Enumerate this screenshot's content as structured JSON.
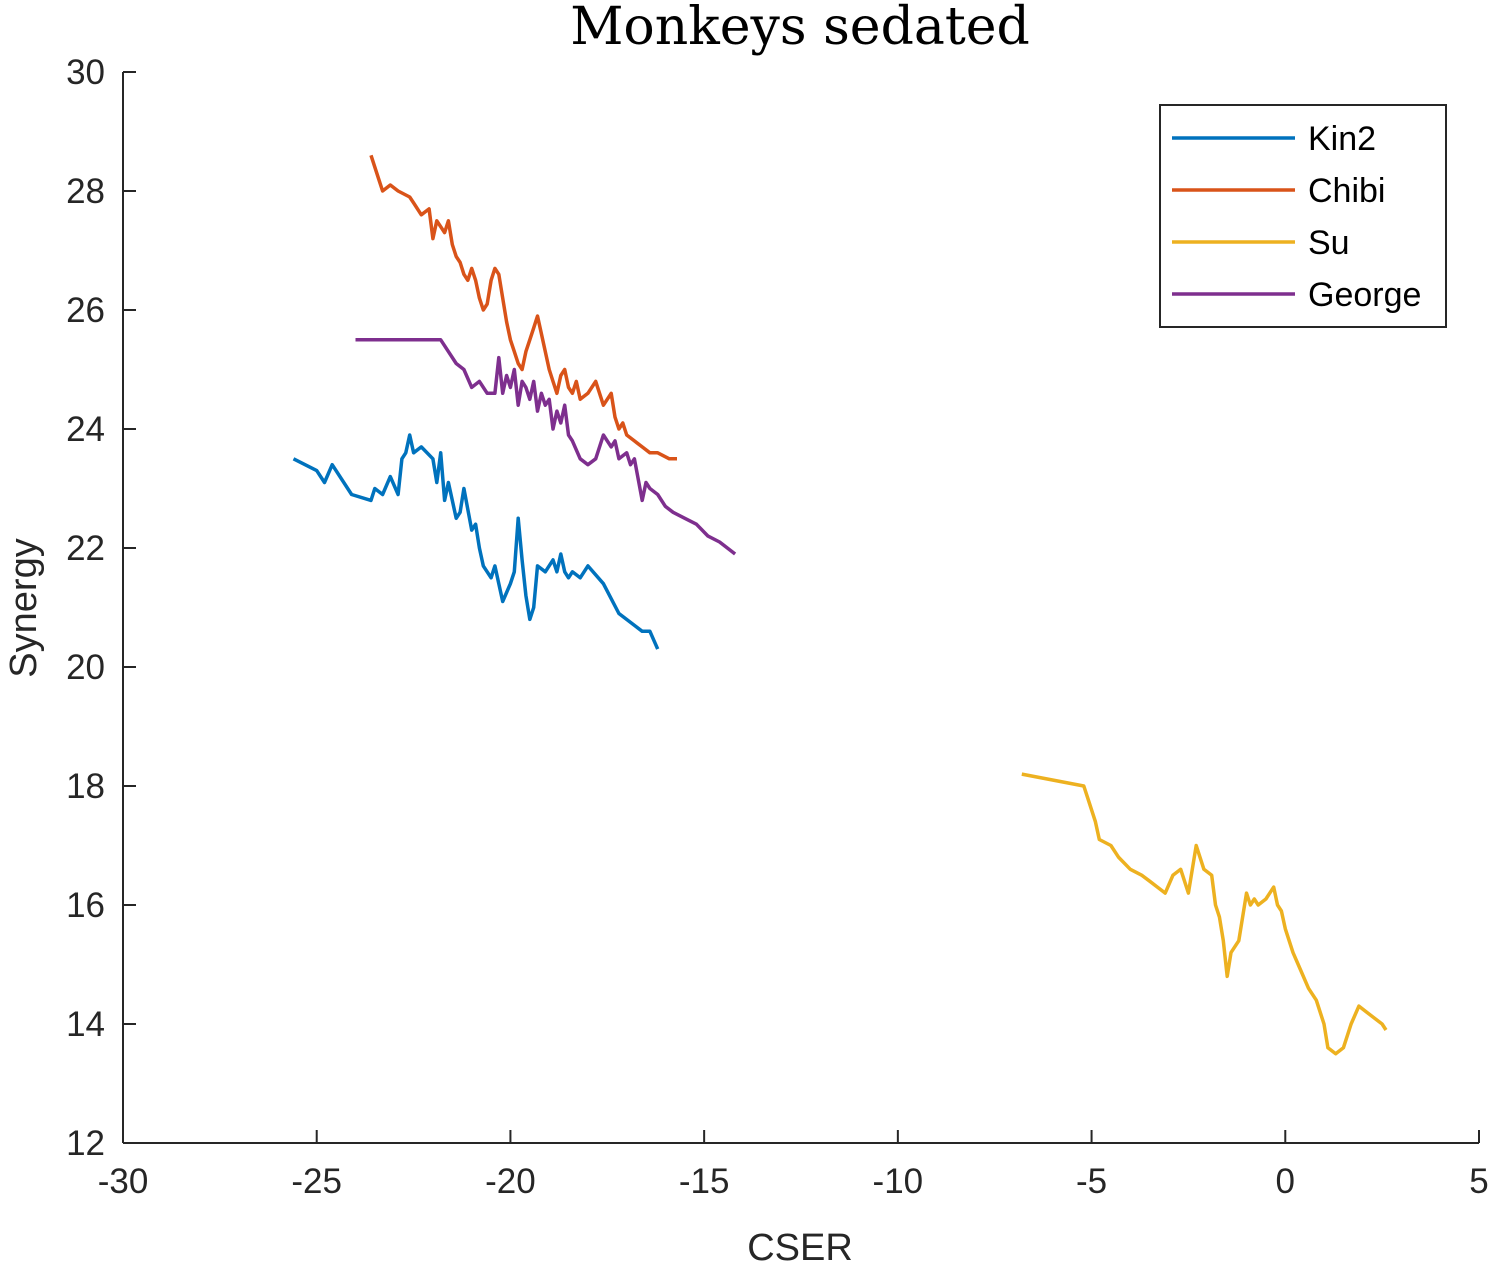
{
  "chart_data": {
    "type": "line",
    "title": "Monkeys sedated",
    "xlabel": "CSER",
    "ylabel": "Synergy",
    "xlim": [
      -30,
      5
    ],
    "ylim": [
      12,
      30
    ],
    "xticks": [
      -30,
      -25,
      -20,
      -15,
      -10,
      -5,
      0,
      5
    ],
    "yticks": [
      12,
      14,
      16,
      18,
      20,
      22,
      24,
      26,
      28,
      30
    ],
    "legend_position": "top-right",
    "grid": false,
    "series": [
      {
        "name": "Kin2",
        "color": "#0072BD",
        "x": [
          -25.6,
          -25.0,
          -24.8,
          -24.6,
          -24.1,
          -23.6,
          -23.5,
          -23.3,
          -23.1,
          -22.9,
          -22.8,
          -22.7,
          -22.6,
          -22.5,
          -22.3,
          -22.0,
          -21.9,
          -21.8,
          -21.7,
          -21.6,
          -21.4,
          -21.3,
          -21.2,
          -21.0,
          -20.9,
          -20.8,
          -20.7,
          -20.5,
          -20.4,
          -20.2,
          -20.0,
          -19.9,
          -19.8,
          -19.7,
          -19.6,
          -19.5,
          -19.4,
          -19.3,
          -19.1,
          -18.9,
          -18.8,
          -18.7,
          -18.6,
          -18.5,
          -18.4,
          -18.2,
          -18.0,
          -17.6,
          -17.2,
          -16.6,
          -16.4,
          -16.2
        ],
        "y": [
          23.5,
          23.3,
          23.1,
          23.4,
          22.9,
          22.8,
          23.0,
          22.9,
          23.2,
          22.9,
          23.5,
          23.6,
          23.9,
          23.6,
          23.7,
          23.5,
          23.1,
          23.6,
          22.8,
          23.1,
          22.5,
          22.6,
          23.0,
          22.3,
          22.4,
          22.0,
          21.7,
          21.5,
          21.7,
          21.1,
          21.4,
          21.6,
          22.5,
          21.8,
          21.2,
          20.8,
          21.0,
          21.7,
          21.6,
          21.8,
          21.6,
          21.9,
          21.6,
          21.5,
          21.6,
          21.5,
          21.7,
          21.4,
          20.9,
          20.6,
          20.6,
          20.3
        ]
      },
      {
        "name": "Chibi",
        "color": "#D95319",
        "x": [
          -23.6,
          -23.4,
          -23.3,
          -23.1,
          -22.9,
          -22.6,
          -22.5,
          -22.3,
          -22.1,
          -22.0,
          -21.9,
          -21.8,
          -21.7,
          -21.6,
          -21.5,
          -21.4,
          -21.3,
          -21.2,
          -21.1,
          -21.0,
          -20.9,
          -20.8,
          -20.7,
          -20.6,
          -20.5,
          -20.4,
          -20.3,
          -20.2,
          -20.1,
          -20.0,
          -19.9,
          -19.8,
          -19.7,
          -19.6,
          -19.5,
          -19.4,
          -19.3,
          -19.2,
          -19.1,
          -19.0,
          -18.9,
          -18.8,
          -18.7,
          -18.6,
          -18.5,
          -18.4,
          -18.3,
          -18.2,
          -18.0,
          -17.8,
          -17.6,
          -17.4,
          -17.3,
          -17.2,
          -17.1,
          -17.0,
          -16.8,
          -16.6,
          -16.4,
          -16.2,
          -15.9,
          -15.7
        ],
        "y": [
          28.6,
          28.2,
          28.0,
          28.1,
          28.0,
          27.9,
          27.8,
          27.6,
          27.7,
          27.2,
          27.5,
          27.4,
          27.3,
          27.5,
          27.1,
          26.9,
          26.8,
          26.6,
          26.5,
          26.7,
          26.5,
          26.2,
          26.0,
          26.1,
          26.5,
          26.7,
          26.6,
          26.2,
          25.8,
          25.5,
          25.3,
          25.1,
          25.0,
          25.3,
          25.5,
          25.7,
          25.9,
          25.6,
          25.3,
          25.0,
          24.8,
          24.6,
          24.9,
          25.0,
          24.7,
          24.6,
          24.8,
          24.5,
          24.6,
          24.8,
          24.4,
          24.6,
          24.2,
          24.0,
          24.1,
          23.9,
          23.8,
          23.7,
          23.6,
          23.6,
          23.5,
          23.5
        ]
      },
      {
        "name": "Su",
        "color": "#EDB120",
        "x": [
          -6.8,
          -5.2,
          -5.1,
          -4.9,
          -4.8,
          -4.5,
          -4.3,
          -4.0,
          -3.7,
          -3.5,
          -3.3,
          -3.1,
          -2.9,
          -2.7,
          -2.5,
          -2.3,
          -2.1,
          -1.9,
          -1.8,
          -1.7,
          -1.6,
          -1.5,
          -1.4,
          -1.2,
          -1.0,
          -0.9,
          -0.8,
          -0.7,
          -0.5,
          -0.3,
          -0.2,
          -0.1,
          0.0,
          0.2,
          0.4,
          0.6,
          0.8,
          1.0,
          1.1,
          1.3,
          1.5,
          1.7,
          1.9,
          2.1,
          2.3,
          2.5,
          2.6
        ],
        "y": [
          18.2,
          18.0,
          17.8,
          17.4,
          17.1,
          17.0,
          16.8,
          16.6,
          16.5,
          16.4,
          16.3,
          16.2,
          16.5,
          16.6,
          16.2,
          17.0,
          16.6,
          16.5,
          16.0,
          15.8,
          15.4,
          14.8,
          15.2,
          15.4,
          16.2,
          16.0,
          16.1,
          16.0,
          16.1,
          16.3,
          16.0,
          15.9,
          15.6,
          15.2,
          14.9,
          14.6,
          14.4,
          14.0,
          13.6,
          13.5,
          13.6,
          14.0,
          14.3,
          14.2,
          14.1,
          14.0,
          13.9
        ]
      },
      {
        "name": "George",
        "color": "#7E2F8E",
        "x": [
          -24.0,
          -21.8,
          -21.6,
          -21.4,
          -21.2,
          -21.0,
          -20.8,
          -20.6,
          -20.4,
          -20.3,
          -20.2,
          -20.1,
          -20.0,
          -19.9,
          -19.8,
          -19.7,
          -19.6,
          -19.5,
          -19.4,
          -19.3,
          -19.2,
          -19.1,
          -19.0,
          -18.9,
          -18.8,
          -18.7,
          -18.6,
          -18.5,
          -18.4,
          -18.2,
          -18.0,
          -17.8,
          -17.6,
          -17.4,
          -17.3,
          -17.2,
          -17.0,
          -16.9,
          -16.8,
          -16.6,
          -16.5,
          -16.4,
          -16.2,
          -16.0,
          -15.8,
          -15.5,
          -15.2,
          -14.9,
          -14.6,
          -14.2
        ],
        "y": [
          25.5,
          25.5,
          25.3,
          25.1,
          25.0,
          24.7,
          24.8,
          24.6,
          24.6,
          25.2,
          24.6,
          24.9,
          24.7,
          25.0,
          24.4,
          24.8,
          24.7,
          24.5,
          24.8,
          24.3,
          24.6,
          24.4,
          24.5,
          24.0,
          24.3,
          24.1,
          24.4,
          23.9,
          23.8,
          23.5,
          23.4,
          23.5,
          23.9,
          23.7,
          23.8,
          23.5,
          23.6,
          23.4,
          23.5,
          22.8,
          23.1,
          23.0,
          22.9,
          22.7,
          22.6,
          22.5,
          22.4,
          22.2,
          22.1,
          21.9
        ]
      }
    ]
  }
}
